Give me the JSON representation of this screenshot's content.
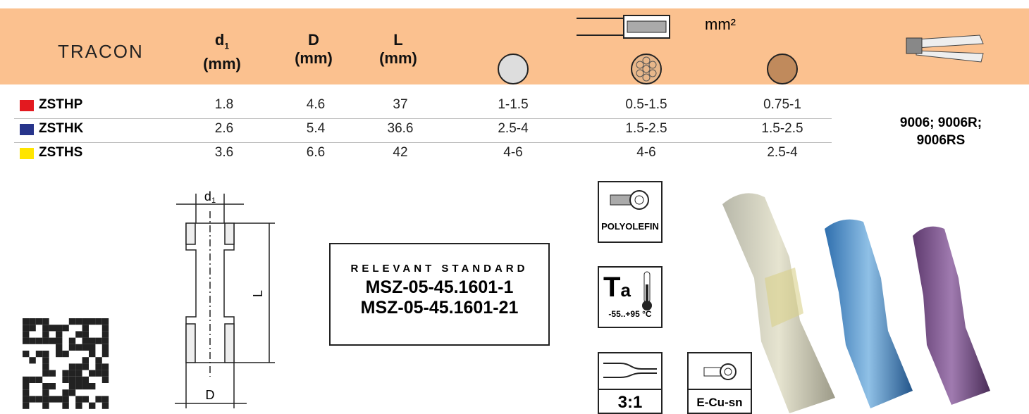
{
  "header": {
    "brand": "TRACON",
    "columns": [
      {
        "symbol": "d",
        "sub": "1",
        "unit": "(mm)"
      },
      {
        "symbol": "D",
        "unit": "(mm)"
      },
      {
        "symbol": "L",
        "unit": "(mm)"
      }
    ],
    "cross_section_unit": "mm²"
  },
  "table": {
    "rows": [
      {
        "name": "ZSTHP",
        "color": "#e3191f",
        "cells": [
          "1.8",
          "4.6",
          "37",
          "1-1.5",
          "0.5-1.5",
          "0.75-1"
        ]
      },
      {
        "name": "ZSTHK",
        "color": "#27348b",
        "cells": [
          "2.6",
          "5.4",
          "36.6",
          "2.5-4",
          "1.5-2.5",
          "1.5-2.5"
        ]
      },
      {
        "name": "ZSTHS",
        "color": "#ffe500",
        "cells": [
          "3.6",
          "6.6",
          "42",
          "4-6",
          "4-6",
          "2.5-4"
        ]
      }
    ],
    "tool": "9006; 9006R; 9006RS"
  },
  "drawing": {
    "d_symbol": "d",
    "d_sub": "1",
    "length": "L",
    "outer": "D"
  },
  "standard": {
    "heading": "RELEVANT STANDARD",
    "codes": [
      "MSZ-05-45.1601-1",
      "MSZ-05-45.1601-21"
    ]
  },
  "icons": {
    "material": "POLYOLEFIN",
    "temp_symbol": "T",
    "temp_sub": "a",
    "temp_range": "-55..+95 °C",
    "ratio": "3:1",
    "conductor": "E-Cu-sn"
  }
}
